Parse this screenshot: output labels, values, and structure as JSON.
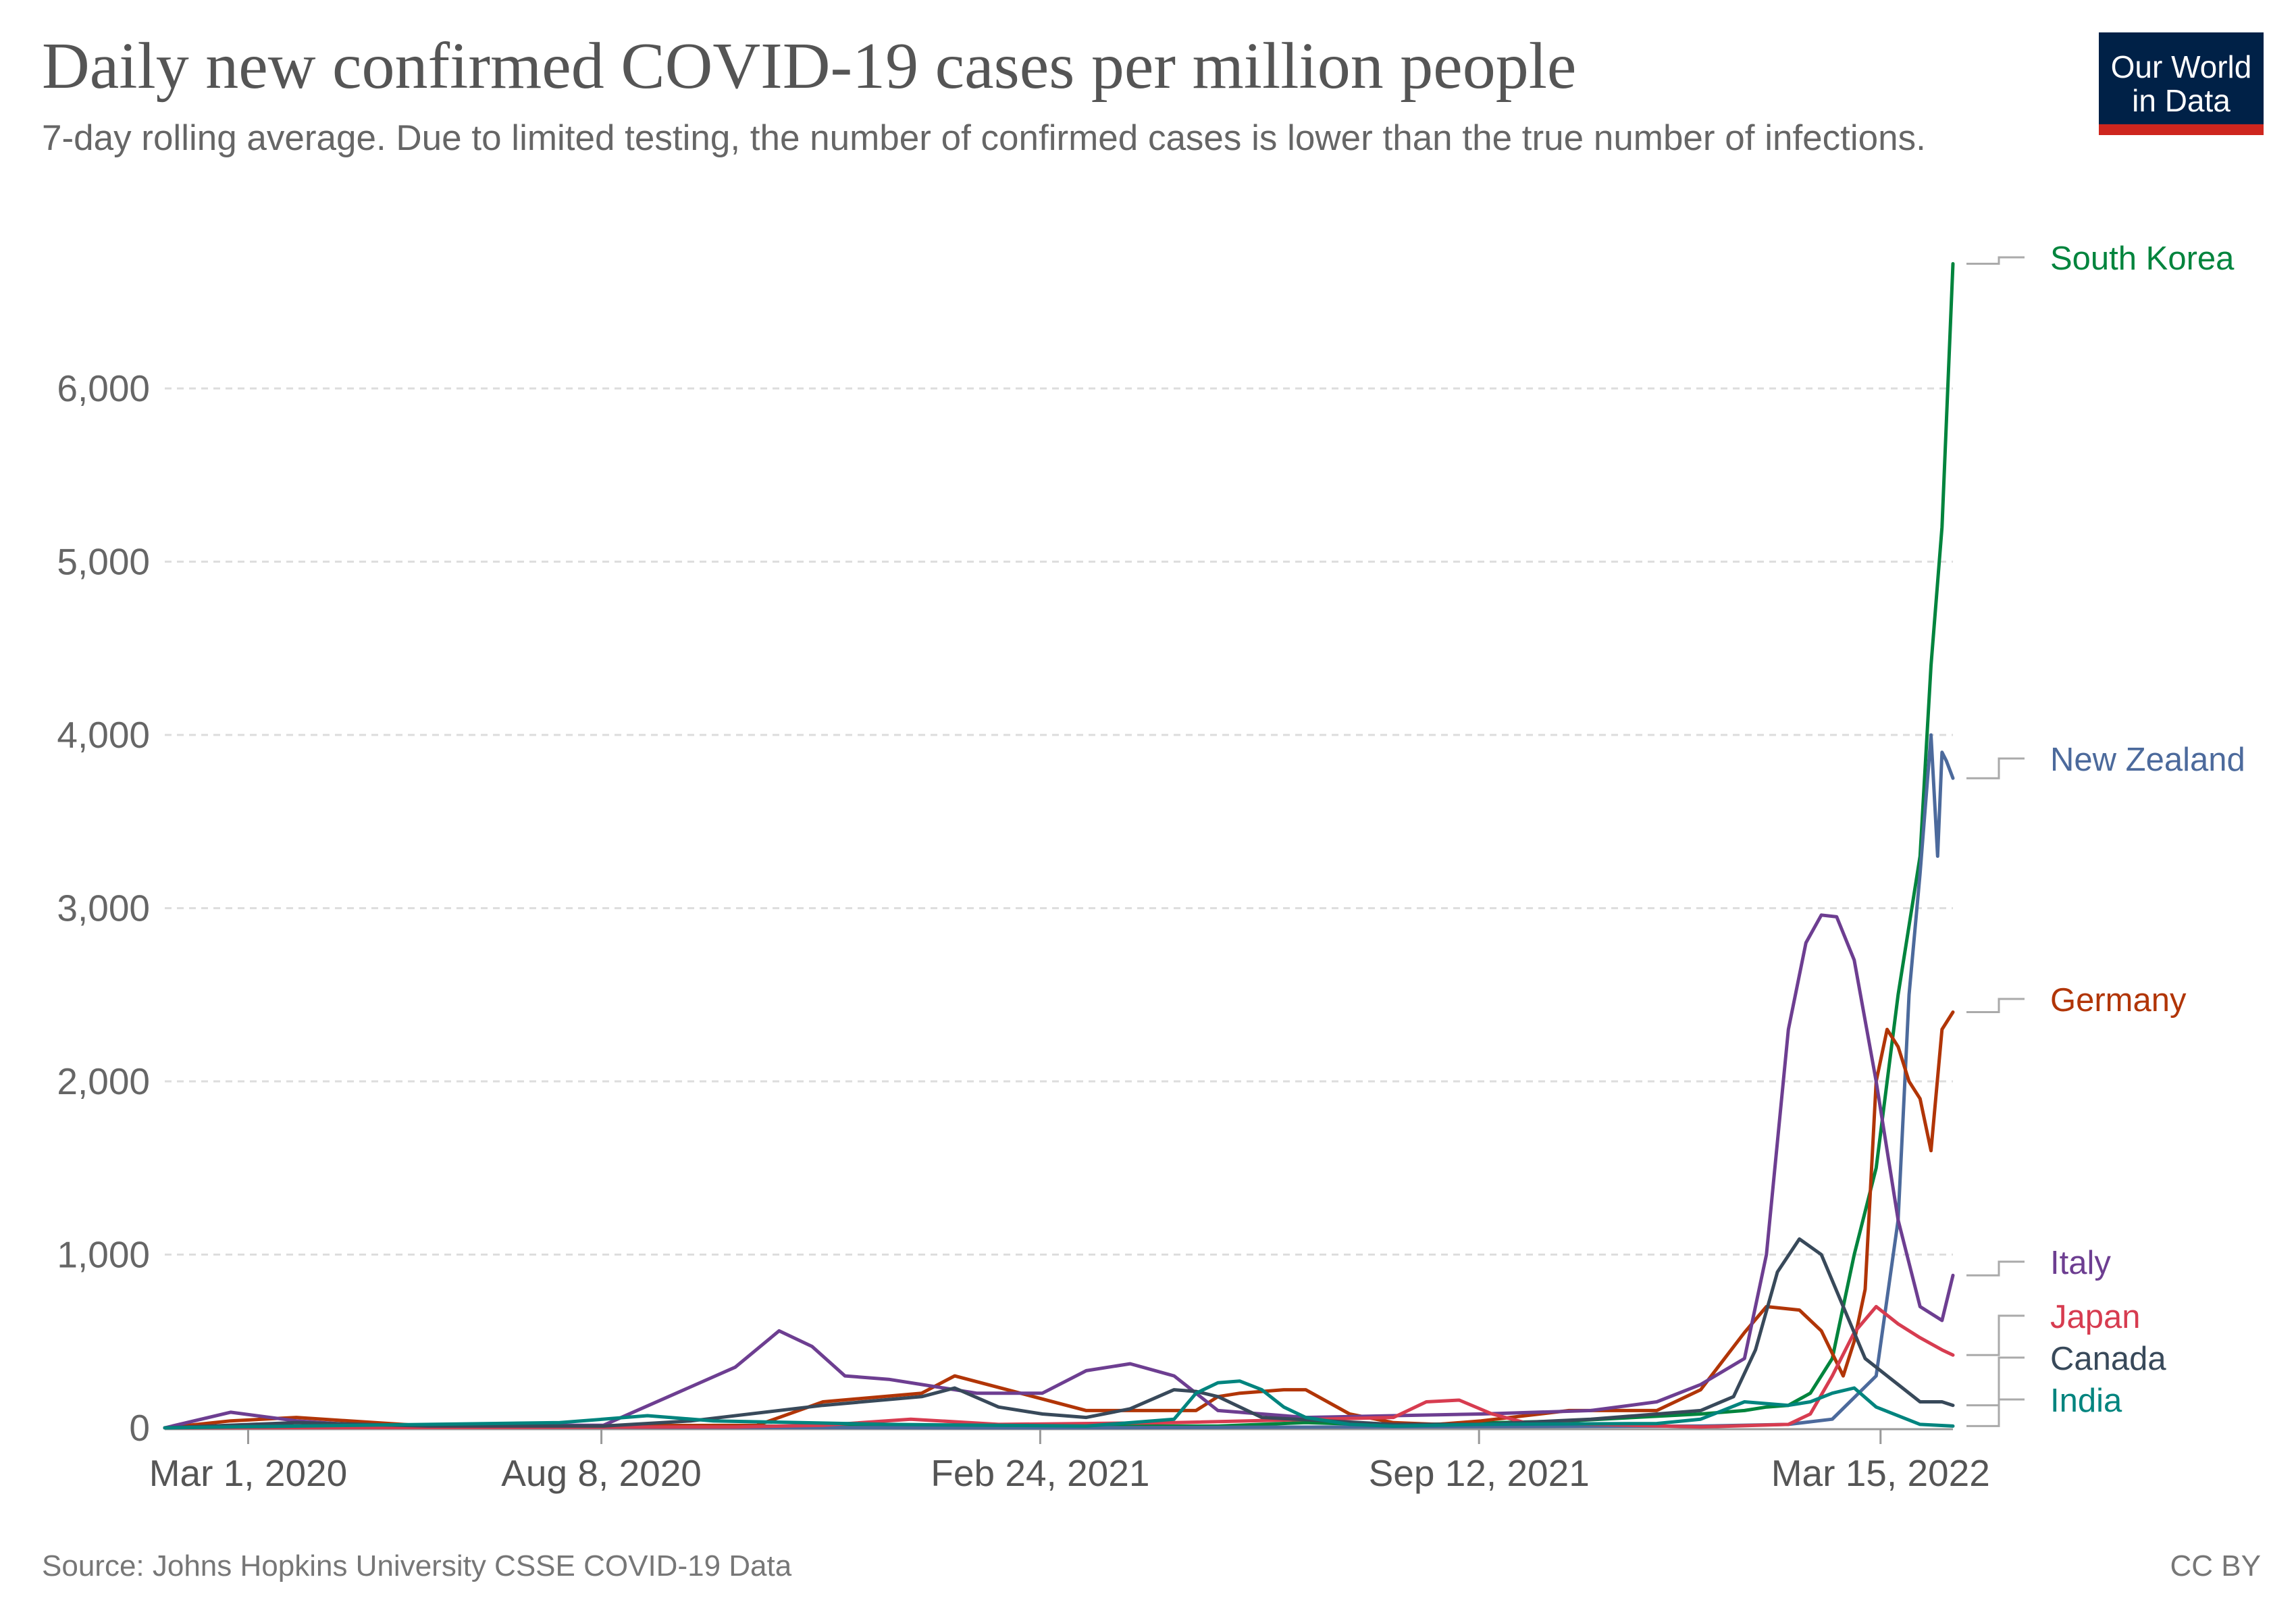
{
  "title": "Daily new confirmed COVID-19 cases per million people",
  "subtitle": "7-day rolling average. Due to limited testing, the number of confirmed cases is lower than the true number of infections.",
  "logo": {
    "line1": "Our World",
    "line2": "in Data",
    "bg": "#002147",
    "accent": "#ce261e"
  },
  "source": "Source: Johns Hopkins University CSSE COVID-19 Data",
  "license": "CC BY",
  "chart_data": {
    "type": "line",
    "title": "Daily new confirmed COVID-19 cases per million people",
    "xlabel": "",
    "ylabel": "",
    "x_domain_days": [
      0,
      815
    ],
    "ylim": [
      0,
      6800
    ],
    "y_ticks": [
      0,
      1000,
      2000,
      3000,
      4000,
      5000,
      6000
    ],
    "y_tick_labels": [
      "0",
      "1,000",
      "2,000",
      "3,000",
      "4,000",
      "5,000",
      "6,000"
    ],
    "x_ticks": [
      {
        "day": 38,
        "label": "Mar 1, 2020"
      },
      {
        "day": 199,
        "label": "Aug 8, 2020"
      },
      {
        "day": 399,
        "label": "Feb 24, 2021"
      },
      {
        "day": 599,
        "label": "Sep 12, 2021"
      },
      {
        "day": 782,
        "label": "Mar 15, 2022"
      }
    ],
    "x_ticks_note": "day = days since Jan 22, 2020",
    "grid": true,
    "series": [
      {
        "name": "South Korea",
        "color": "#00843d",
        "x": [
          0,
          60,
          180,
          230,
          330,
          480,
          520,
          560,
          640,
          700,
          720,
          730,
          740,
          750,
          760,
          770,
          780,
          790,
          800,
          805,
          810,
          815
        ],
        "y": [
          0,
          10,
          5,
          10,
          10,
          10,
          30,
          15,
          40,
          80,
          100,
          120,
          130,
          200,
          400,
          1000,
          1500,
          2500,
          3300,
          4400,
          5200,
          6720
        ]
      },
      {
        "name": "New Zealand",
        "color": "#4c6a9c",
        "x": [
          0,
          60,
          400,
          700,
          740,
          760,
          780,
          790,
          795,
          800,
          805,
          808,
          810,
          812,
          815
        ],
        "y": [
          0,
          5,
          0,
          10,
          20,
          50,
          300,
          1200,
          2500,
          3200,
          4000,
          3300,
          3900,
          3850,
          3750
        ]
      },
      {
        "name": "Germany",
        "color": "#b13507",
        "x": [
          0,
          30,
          60,
          120,
          270,
          300,
          345,
          360,
          420,
          470,
          480,
          490,
          510,
          520,
          540,
          560,
          580,
          600,
          640,
          680,
          700,
          720,
          730,
          745,
          755,
          765,
          770,
          775,
          780,
          785,
          790,
          795,
          800,
          805,
          810,
          815
        ],
        "y": [
          0,
          40,
          60,
          10,
          15,
          150,
          200,
          300,
          100,
          100,
          180,
          200,
          220,
          220,
          80,
          30,
          20,
          40,
          100,
          100,
          220,
          550,
          700,
          680,
          560,
          300,
          500,
          800,
          2000,
          2300,
          2200,
          2000,
          1900,
          1600,
          2300,
          2400
        ]
      },
      {
        "name": "Italy",
        "color": "#6d3e91",
        "x": [
          0,
          30,
          60,
          90,
          200,
          260,
          280,
          295,
          310,
          330,
          345,
          370,
          400,
          420,
          440,
          460,
          480,
          520,
          600,
          650,
          680,
          700,
          720,
          730,
          740,
          748,
          755,
          762,
          770,
          780,
          790,
          800,
          810,
          815
        ],
        "y": [
          0,
          90,
          40,
          15,
          15,
          350,
          560,
          470,
          300,
          280,
          250,
          200,
          200,
          330,
          370,
          300,
          100,
          60,
          80,
          100,
          150,
          250,
          400,
          1000,
          2300,
          2800,
          2960,
          2950,
          2700,
          2000,
          1200,
          700,
          620,
          880
        ]
      },
      {
        "name": "Japan",
        "color": "#d73c50",
        "x": [
          0,
          260,
          300,
          340,
          380,
          460,
          560,
          575,
          590,
          605,
          620,
          700,
          740,
          750,
          760,
          770,
          780,
          790,
          800,
          810,
          815
        ],
        "y": [
          0,
          5,
          15,
          50,
          20,
          30,
          60,
          150,
          160,
          80,
          30,
          5,
          20,
          80,
          300,
          550,
          700,
          600,
          520,
          450,
          420
        ]
      },
      {
        "name": "Canada",
        "color": "#38495a",
        "x": [
          0,
          60,
          120,
          200,
          240,
          300,
          345,
          360,
          380,
          400,
          420,
          440,
          460,
          470,
          480,
          500,
          560,
          600,
          650,
          700,
          715,
          725,
          735,
          745,
          755,
          765,
          775,
          790,
          800,
          810,
          815
        ],
        "y": [
          0,
          30,
          10,
          10,
          40,
          130,
          180,
          230,
          120,
          80,
          60,
          110,
          220,
          210,
          180,
          60,
          20,
          20,
          50,
          100,
          180,
          450,
          900,
          1090,
          1000,
          700,
          400,
          250,
          150,
          150,
          130
        ]
      },
      {
        "name": "India",
        "color": "#00847e",
        "x": [
          0,
          180,
          220,
          250,
          330,
          420,
          460,
          470,
          480,
          490,
          500,
          510,
          520,
          540,
          560,
          600,
          680,
          700,
          710,
          720,
          740,
          750,
          760,
          770,
          780,
          800,
          815
        ],
        "y": [
          0,
          30,
          70,
          40,
          20,
          10,
          50,
          200,
          260,
          270,
          220,
          120,
          60,
          20,
          10,
          20,
          25,
          50,
          100,
          150,
          130,
          150,
          200,
          230,
          120,
          20,
          10
        ]
      }
    ],
    "legend": {
      "placement": "right",
      "entries": [
        "South Korea",
        "New Zealand",
        "Germany",
        "Italy",
        "Japan",
        "Canada",
        "India"
      ]
    }
  }
}
